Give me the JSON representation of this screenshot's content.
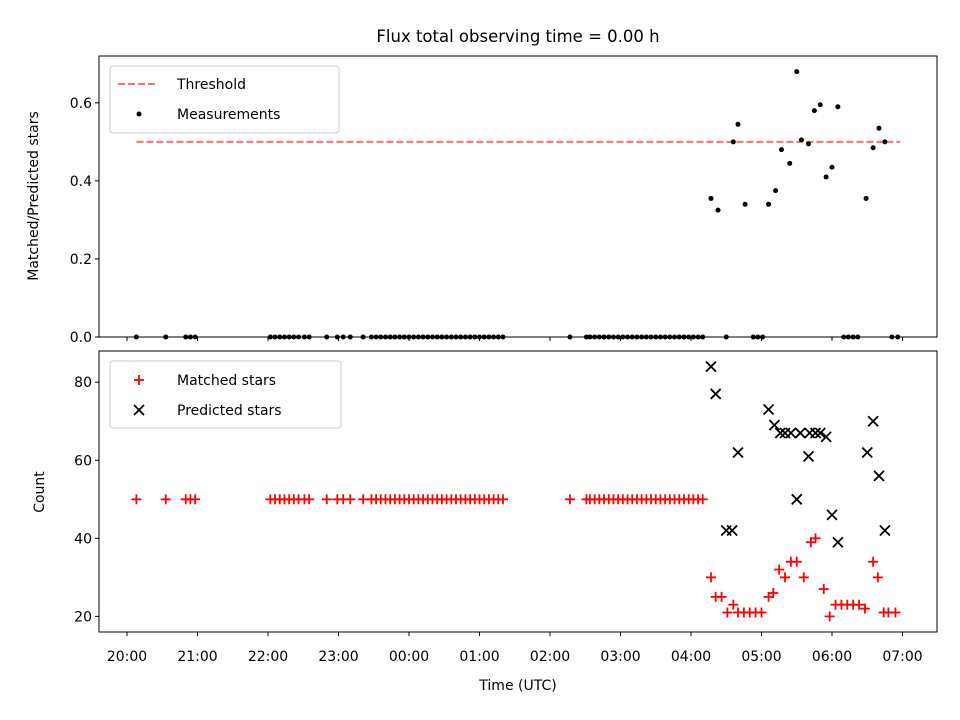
{
  "chart_data": [
    {
      "type": "scatter",
      "title": "Flux total observing time = 0.00 h",
      "xlabel": "",
      "ylabel": "Matched/Predicted stars",
      "ylim": [
        0,
        0.72
      ],
      "yticks": [
        "0.0",
        "0.2",
        "0.4",
        "0.6"
      ],
      "grid": false,
      "legend": {
        "position": "top-left",
        "entries": [
          "Threshold",
          "Measurements"
        ]
      },
      "threshold": {
        "name": "Threshold",
        "value": 0.5,
        "x_range": [
          "20:08",
          "06:58"
        ],
        "color": "#ff7070"
      },
      "series": [
        {
          "name": "Measurements",
          "marker": "dot",
          "color": "#000000",
          "points": [
            [
              "20:08",
              0.0
            ],
            [
              "20:33",
              0.0
            ],
            [
              "20:50",
              0.0
            ],
            [
              "20:54",
              0.0
            ],
            [
              "20:58",
              0.0
            ],
            [
              "22:02",
              0.0
            ],
            [
              "22:06",
              0.0
            ],
            [
              "22:10",
              0.0
            ],
            [
              "22:14",
              0.0
            ],
            [
              "22:18",
              0.0
            ],
            [
              "22:22",
              0.0
            ],
            [
              "22:26",
              0.0
            ],
            [
              "22:31",
              0.0
            ],
            [
              "22:35",
              0.0
            ],
            [
              "22:50",
              0.0
            ],
            [
              "22:59",
              0.0
            ],
            [
              "23:04",
              0.0
            ],
            [
              "23:10",
              0.0
            ],
            [
              "23:21",
              0.0
            ],
            [
              "23:28",
              0.0
            ],
            [
              "23:32",
              0.0
            ],
            [
              "23:36",
              0.0
            ],
            [
              "23:40",
              0.0
            ],
            [
              "23:44",
              0.0
            ],
            [
              "23:48",
              0.0
            ],
            [
              "23:52",
              0.0
            ],
            [
              "23:56",
              0.0
            ],
            [
              "00:00",
              0.0
            ],
            [
              "00:04",
              0.0
            ],
            [
              "00:08",
              0.0
            ],
            [
              "00:12",
              0.0
            ],
            [
              "00:16",
              0.0
            ],
            [
              "00:20",
              0.0
            ],
            [
              "00:24",
              0.0
            ],
            [
              "00:28",
              0.0
            ],
            [
              "00:32",
              0.0
            ],
            [
              "00:36",
              0.0
            ],
            [
              "00:40",
              0.0
            ],
            [
              "00:44",
              0.0
            ],
            [
              "00:48",
              0.0
            ],
            [
              "00:52",
              0.0
            ],
            [
              "00:56",
              0.0
            ],
            [
              "01:00",
              0.0
            ],
            [
              "01:04",
              0.0
            ],
            [
              "01:08",
              0.0
            ],
            [
              "01:12",
              0.0
            ],
            [
              "01:16",
              0.0
            ],
            [
              "01:20",
              0.0
            ],
            [
              "02:17",
              0.0
            ],
            [
              "02:31",
              0.0
            ],
            [
              "02:34",
              0.0
            ],
            [
              "02:38",
              0.0
            ],
            [
              "02:42",
              0.0
            ],
            [
              "02:46",
              0.0
            ],
            [
              "02:50",
              0.0
            ],
            [
              "02:54",
              0.0
            ],
            [
              "02:58",
              0.0
            ],
            [
              "03:02",
              0.0
            ],
            [
              "03:06",
              0.0
            ],
            [
              "03:10",
              0.0
            ],
            [
              "03:14",
              0.0
            ],
            [
              "03:18",
              0.0
            ],
            [
              "03:22",
              0.0
            ],
            [
              "03:26",
              0.0
            ],
            [
              "03:30",
              0.0
            ],
            [
              "03:34",
              0.0
            ],
            [
              "03:38",
              0.0
            ],
            [
              "03:42",
              0.0
            ],
            [
              "03:46",
              0.0
            ],
            [
              "03:50",
              0.0
            ],
            [
              "03:54",
              0.0
            ],
            [
              "03:58",
              0.0
            ],
            [
              "04:02",
              0.0
            ],
            [
              "04:06",
              0.0
            ],
            [
              "04:10",
              0.0
            ],
            [
              "04:17",
              0.355
            ],
            [
              "04:23",
              0.325
            ],
            [
              "04:30",
              0.0
            ],
            [
              "04:36",
              0.5
            ],
            [
              "04:40",
              0.545
            ],
            [
              "04:46",
              0.34
            ],
            [
              "04:53",
              0.0
            ],
            [
              "04:57",
              0.0
            ],
            [
              "05:01",
              0.0
            ],
            [
              "05:06",
              0.34
            ],
            [
              "05:12",
              0.375
            ],
            [
              "05:17",
              0.48
            ],
            [
              "05:24",
              0.445
            ],
            [
              "05:30",
              0.68
            ],
            [
              "05:34",
              0.505
            ],
            [
              "05:40",
              0.495
            ],
            [
              "05:45",
              0.58
            ],
            [
              "05:50",
              0.595
            ],
            [
              "05:55",
              0.41
            ],
            [
              "06:00",
              0.435
            ],
            [
              "06:05",
              0.59
            ],
            [
              "06:10",
              0.0
            ],
            [
              "06:14",
              0.0
            ],
            [
              "06:18",
              0.0
            ],
            [
              "06:22",
              0.0
            ],
            [
              "06:29",
              0.355
            ],
            [
              "06:35",
              0.485
            ],
            [
              "06:40",
              0.535
            ],
            [
              "06:45",
              0.5
            ],
            [
              "06:51",
              0.0
            ],
            [
              "06:56",
              0.0
            ]
          ]
        }
      ]
    },
    {
      "type": "scatter",
      "title": "",
      "xlabel": "Time (UTC)",
      "ylabel": "Count",
      "ylim": [
        16,
        88
      ],
      "yticks": [
        "20",
        "40",
        "60",
        "80"
      ],
      "xticks": [
        "20:00",
        "21:00",
        "22:00",
        "23:00",
        "00:00",
        "01:00",
        "02:00",
        "03:00",
        "04:00",
        "05:00",
        "06:00",
        "07:00"
      ],
      "grid": false,
      "legend": {
        "position": "top-left",
        "entries": [
          "Matched stars",
          "Predicted stars"
        ]
      },
      "series": [
        {
          "name": "Matched stars",
          "marker": "plus",
          "color": "#ff0000",
          "points": [
            [
              "20:08",
              50
            ],
            [
              "20:33",
              50
            ],
            [
              "20:50",
              50
            ],
            [
              "20:54",
              50
            ],
            [
              "20:58",
              50
            ],
            [
              "22:02",
              50
            ],
            [
              "22:06",
              50
            ],
            [
              "22:10",
              50
            ],
            [
              "22:14",
              50
            ],
            [
              "22:18",
              50
            ],
            [
              "22:22",
              50
            ],
            [
              "22:26",
              50
            ],
            [
              "22:31",
              50
            ],
            [
              "22:35",
              50
            ],
            [
              "22:50",
              50
            ],
            [
              "22:59",
              50
            ],
            [
              "23:04",
              50
            ],
            [
              "23:10",
              50
            ],
            [
              "23:21",
              50
            ],
            [
              "23:28",
              50
            ],
            [
              "23:32",
              50
            ],
            [
              "23:36",
              50
            ],
            [
              "23:40",
              50
            ],
            [
              "23:44",
              50
            ],
            [
              "23:48",
              50
            ],
            [
              "23:52",
              50
            ],
            [
              "23:56",
              50
            ],
            [
              "00:00",
              50
            ],
            [
              "00:04",
              50
            ],
            [
              "00:08",
              50
            ],
            [
              "00:12",
              50
            ],
            [
              "00:16",
              50
            ],
            [
              "00:20",
              50
            ],
            [
              "00:24",
              50
            ],
            [
              "00:28",
              50
            ],
            [
              "00:32",
              50
            ],
            [
              "00:36",
              50
            ],
            [
              "00:40",
              50
            ],
            [
              "00:44",
              50
            ],
            [
              "00:48",
              50
            ],
            [
              "00:52",
              50
            ],
            [
              "00:56",
              50
            ],
            [
              "01:00",
              50
            ],
            [
              "01:04",
              50
            ],
            [
              "01:08",
              50
            ],
            [
              "01:12",
              50
            ],
            [
              "01:16",
              50
            ],
            [
              "01:20",
              50
            ],
            [
              "02:17",
              50
            ],
            [
              "02:31",
              50
            ],
            [
              "02:34",
              50
            ],
            [
              "02:38",
              50
            ],
            [
              "02:42",
              50
            ],
            [
              "02:46",
              50
            ],
            [
              "02:50",
              50
            ],
            [
              "02:54",
              50
            ],
            [
              "02:58",
              50
            ],
            [
              "03:02",
              50
            ],
            [
              "03:06",
              50
            ],
            [
              "03:10",
              50
            ],
            [
              "03:14",
              50
            ],
            [
              "03:18",
              50
            ],
            [
              "03:22",
              50
            ],
            [
              "03:26",
              50
            ],
            [
              "03:30",
              50
            ],
            [
              "03:34",
              50
            ],
            [
              "03:38",
              50
            ],
            [
              "03:42",
              50
            ],
            [
              "03:46",
              50
            ],
            [
              "03:50",
              50
            ],
            [
              "03:54",
              50
            ],
            [
              "03:58",
              50
            ],
            [
              "04:02",
              50
            ],
            [
              "04:06",
              50
            ],
            [
              "04:10",
              50
            ],
            [
              "04:17",
              30
            ],
            [
              "04:21",
              25
            ],
            [
              "04:26",
              25
            ],
            [
              "04:31",
              21
            ],
            [
              "04:36",
              23
            ],
            [
              "04:40",
              21
            ],
            [
              "04:45",
              21
            ],
            [
              "04:50",
              21
            ],
            [
              "04:55",
              21
            ],
            [
              "05:00",
              21
            ],
            [
              "05:06",
              25
            ],
            [
              "05:10",
              26
            ],
            [
              "05:15",
              32
            ],
            [
              "05:20",
              30
            ],
            [
              "05:25",
              34
            ],
            [
              "05:30",
              34
            ],
            [
              "05:36",
              30
            ],
            [
              "05:42",
              39
            ],
            [
              "05:46",
              40
            ],
            [
              "05:53",
              27
            ],
            [
              "05:58",
              20
            ],
            [
              "06:03",
              23
            ],
            [
              "06:08",
              23
            ],
            [
              "06:13",
              23
            ],
            [
              "06:18",
              23
            ],
            [
              "06:23",
              23
            ],
            [
              "06:28",
              22
            ],
            [
              "06:35",
              34
            ],
            [
              "06:39",
              30
            ],
            [
              "06:44",
              21
            ],
            [
              "06:48",
              21
            ],
            [
              "06:54",
              21
            ]
          ]
        },
        {
          "name": "Predicted stars",
          "marker": "x",
          "color": "#000000",
          "points": [
            [
              "04:17",
              84
            ],
            [
              "04:21",
              77
            ],
            [
              "04:30",
              42
            ],
            [
              "04:35",
              42
            ],
            [
              "04:40",
              62
            ],
            [
              "05:06",
              73
            ],
            [
              "05:11",
              69
            ],
            [
              "05:16",
              67
            ],
            [
              "05:20",
              67
            ],
            [
              "05:25",
              67
            ],
            [
              "05:30",
              50
            ],
            [
              "05:33",
              67
            ],
            [
              "05:40",
              61
            ],
            [
              "05:41",
              67
            ],
            [
              "05:46",
              67
            ],
            [
              "05:50",
              67
            ],
            [
              "05:55",
              66
            ],
            [
              "06:00",
              46
            ],
            [
              "06:05",
              39
            ],
            [
              "06:30",
              62
            ],
            [
              "06:35",
              70
            ],
            [
              "06:40",
              56
            ],
            [
              "06:45",
              42
            ]
          ]
        }
      ]
    }
  ]
}
